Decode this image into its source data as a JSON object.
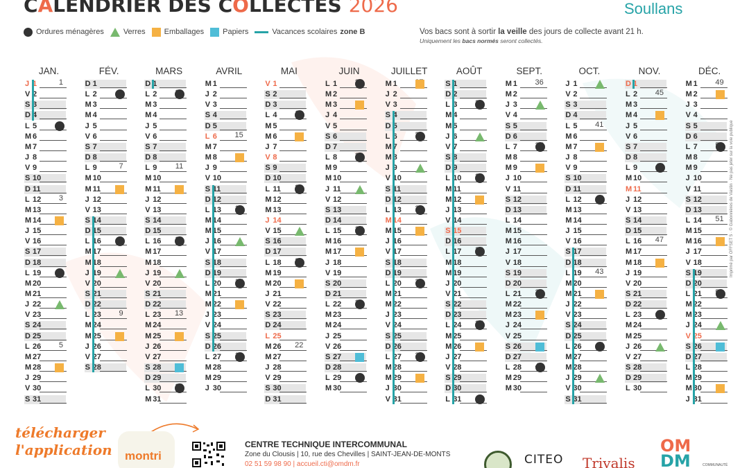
{
  "header": {
    "title_pre": "C",
    "title_a": "A",
    "title_mid": "LENDRIER DES C",
    "title_o": "O",
    "title_post": "LLECTES",
    "year": "2026",
    "commune": "Soullans"
  },
  "legend": {
    "items": [
      {
        "icon": "ordures-dot",
        "label": "Ordures ménagères"
      },
      {
        "icon": "verres-triangle",
        "label": "Verres"
      },
      {
        "icon": "emballages-square",
        "label": "Emballages"
      },
      {
        "icon": "papiers-square",
        "label": "Papiers"
      },
      {
        "icon": "vacances-line",
        "label": "Vacances scolaires",
        "bold": "zone B"
      }
    ]
  },
  "notice": {
    "line1_pre": "Vos bacs sont à sortir ",
    "line1_bold": "la veille",
    "line1_post": " des jours de collecte avant 21 h.",
    "line2_pre": "Uniquement les ",
    "line2_bold": "bacs normés",
    "line2_post": " seront collectés."
  },
  "colors": {
    "ordures": "#333333",
    "verres": "#78b96e",
    "emballages": "#f5b143",
    "papiers": "#4fbdd7",
    "vacances": "#26a3a7",
    "accent": "#ee6a4a",
    "weekend": "#e6e6e6"
  },
  "calendar": {
    "months": [
      {
        "name": "JAN.",
        "first_weekday": 3,
        "length": 31,
        "holidays": [
          1
        ],
        "ord": [
          5,
          19
        ],
        "ver": [
          22
        ],
        "emb": [
          14,
          28
        ],
        "pap": [],
        "weeks": {
          "1": "1",
          "5": "2",
          "12": "3",
          "19": "4",
          "26": "5"
        },
        "vacation": [
          [
            1,
            4
          ]
        ]
      },
      {
        "name": "FÉV.",
        "first_weekday": 6,
        "length": 28,
        "holidays": [],
        "ord": [
          2,
          16
        ],
        "ver": [
          19
        ],
        "emb": [
          11,
          25
        ],
        "pap": [],
        "weeks": {
          "2": "6",
          "9": "7",
          "16": "8",
          "23": "9"
        },
        "vacation": [
          [
            14,
            28
          ]
        ]
      },
      {
        "name": "MARS",
        "first_weekday": 6,
        "length": 31,
        "holidays": [],
        "ord": [
          2,
          16,
          30
        ],
        "ver": [
          19
        ],
        "emb": [
          11,
          25
        ],
        "pap": [
          28
        ],
        "weeks": {
          "2": "10",
          "9": "11",
          "16": "12",
          "23": "13",
          "30": "14"
        },
        "vacation": [
          [
            1,
            1
          ]
        ]
      },
      {
        "name": "AVRIL",
        "first_weekday": 2,
        "length": 30,
        "holidays": [
          6
        ],
        "ord": [
          13,
          20,
          27
        ],
        "ver": [
          16
        ],
        "emb": [
          8,
          22
        ],
        "pap": [],
        "weeks": {
          "6": "15",
          "13": "16",
          "20": "17",
          "27": "18"
        },
        "vacation": [
          [
            11,
            26
          ]
        ]
      },
      {
        "name": "MAI",
        "first_weekday": 4,
        "length": 31,
        "holidays": [
          1,
          8,
          14,
          25
        ],
        "ord": [
          4,
          11,
          18
        ],
        "ver": [
          15
        ],
        "emb": [
          6,
          20
        ],
        "pap": [],
        "weeks": {
          "4": "19",
          "11": "20",
          "18": "21",
          "26": "22"
        },
        "vacation": []
      },
      {
        "name": "JUIN",
        "first_weekday": 0,
        "length": 30,
        "holidays": [],
        "ord": [
          1,
          8,
          15,
          22,
          29
        ],
        "ver": [
          11
        ],
        "emb": [
          3,
          17
        ],
        "pap": [
          27
        ],
        "weeks": {
          "1": "23",
          "8": "24",
          "15": "25",
          "22": "26"
        },
        "vacation": []
      },
      {
        "name": "JUILLET",
        "first_weekday": 2,
        "length": 31,
        "holidays": [
          14
        ],
        "ord": [
          6,
          13,
          20,
          27
        ],
        "ver": [
          9
        ],
        "emb": [
          1,
          15,
          29
        ],
        "pap": [],
        "weeks": {
          "1": "27",
          "6": "28",
          "13": "29",
          "20": "30",
          "27": "31"
        },
        "vacation": [
          [
            4,
            31
          ]
        ]
      },
      {
        "name": "AOÛT",
        "first_weekday": 5,
        "length": 31,
        "holidays": [
          15
        ],
        "ord": [
          3,
          10,
          17,
          24,
          31
        ],
        "ver": [
          6
        ],
        "emb": [
          12,
          26
        ],
        "pap": [],
        "weeks": {
          "3": "32",
          "10": "33",
          "17": "34",
          "24": "35"
        },
        "vacation": [
          [
            1,
            31
          ]
        ]
      },
      {
        "name": "SEPT.",
        "first_weekday": 1,
        "length": 30,
        "holidays": [],
        "ord": [
          7,
          21,
          28
        ],
        "ver": [
          3
        ],
        "emb": [
          9,
          23
        ],
        "pap": [
          26
        ],
        "weeks": {
          "1": "36",
          "7": "37",
          "21": "39",
          "28": "40"
        },
        "vacation": []
      },
      {
        "name": "OCT.",
        "first_weekday": 3,
        "length": 31,
        "holidays": [],
        "ord": [
          12,
          26
        ],
        "ver": [
          1,
          29
        ],
        "emb": [
          7,
          21
        ],
        "pap": [],
        "weeks": {
          "5": "41",
          "12": "42",
          "19": "43",
          "26": "44"
        },
        "vacation": [
          [
            17,
            31
          ]
        ]
      },
      {
        "name": "NOV.",
        "first_weekday": 6,
        "length": 30,
        "holidays": [
          1,
          11
        ],
        "ord": [
          9,
          23
        ],
        "ver": [
          26
        ],
        "emb": [
          4,
          18
        ],
        "pap": [],
        "weeks": {
          "2": "45",
          "9": "46",
          "16": "47",
          "23": "48"
        },
        "vacation": [
          [
            1,
            1
          ]
        ]
      },
      {
        "name": "DÉC.",
        "first_weekday": 1,
        "length": 31,
        "holidays": [
          25
        ],
        "ord": [
          7,
          21
        ],
        "ver": [
          24
        ],
        "emb": [
          2,
          16,
          30
        ],
        "pap": [
          26
        ],
        "weeks": {
          "1": "49",
          "7": "50",
          "14": "51",
          "21": "52"
        },
        "vacation": [
          [
            19,
            31
          ]
        ]
      }
    ],
    "weekday_letters": [
      "L",
      "M",
      "M",
      "J",
      "V",
      "S",
      "D"
    ]
  },
  "imprint": "Imprimé par OFFSET 5 · © Gabonnières de Vaistin · Ne pas jeter sur la voie publique",
  "footer": {
    "app_line1": "télécharger",
    "app_line2": "l'application",
    "app_name": "montri",
    "center_name": "CENTRE TECHNIQUE INTERCOMMUNAL",
    "center_addr": "Zone du Clousis | 10, rue des Chevilles | SAINT-JEAN-DE-MONTS",
    "center_contact": "02 51 59 98 90 | accueil.cti@omdm.fr",
    "logo_citeo": "CITEO",
    "logo_trivalis": "Trivalis",
    "logo_omdm_1": "OM",
    "logo_omdm_2": "DM",
    "logo_omdm_sub": "COMMUNAUTÉ"
  }
}
